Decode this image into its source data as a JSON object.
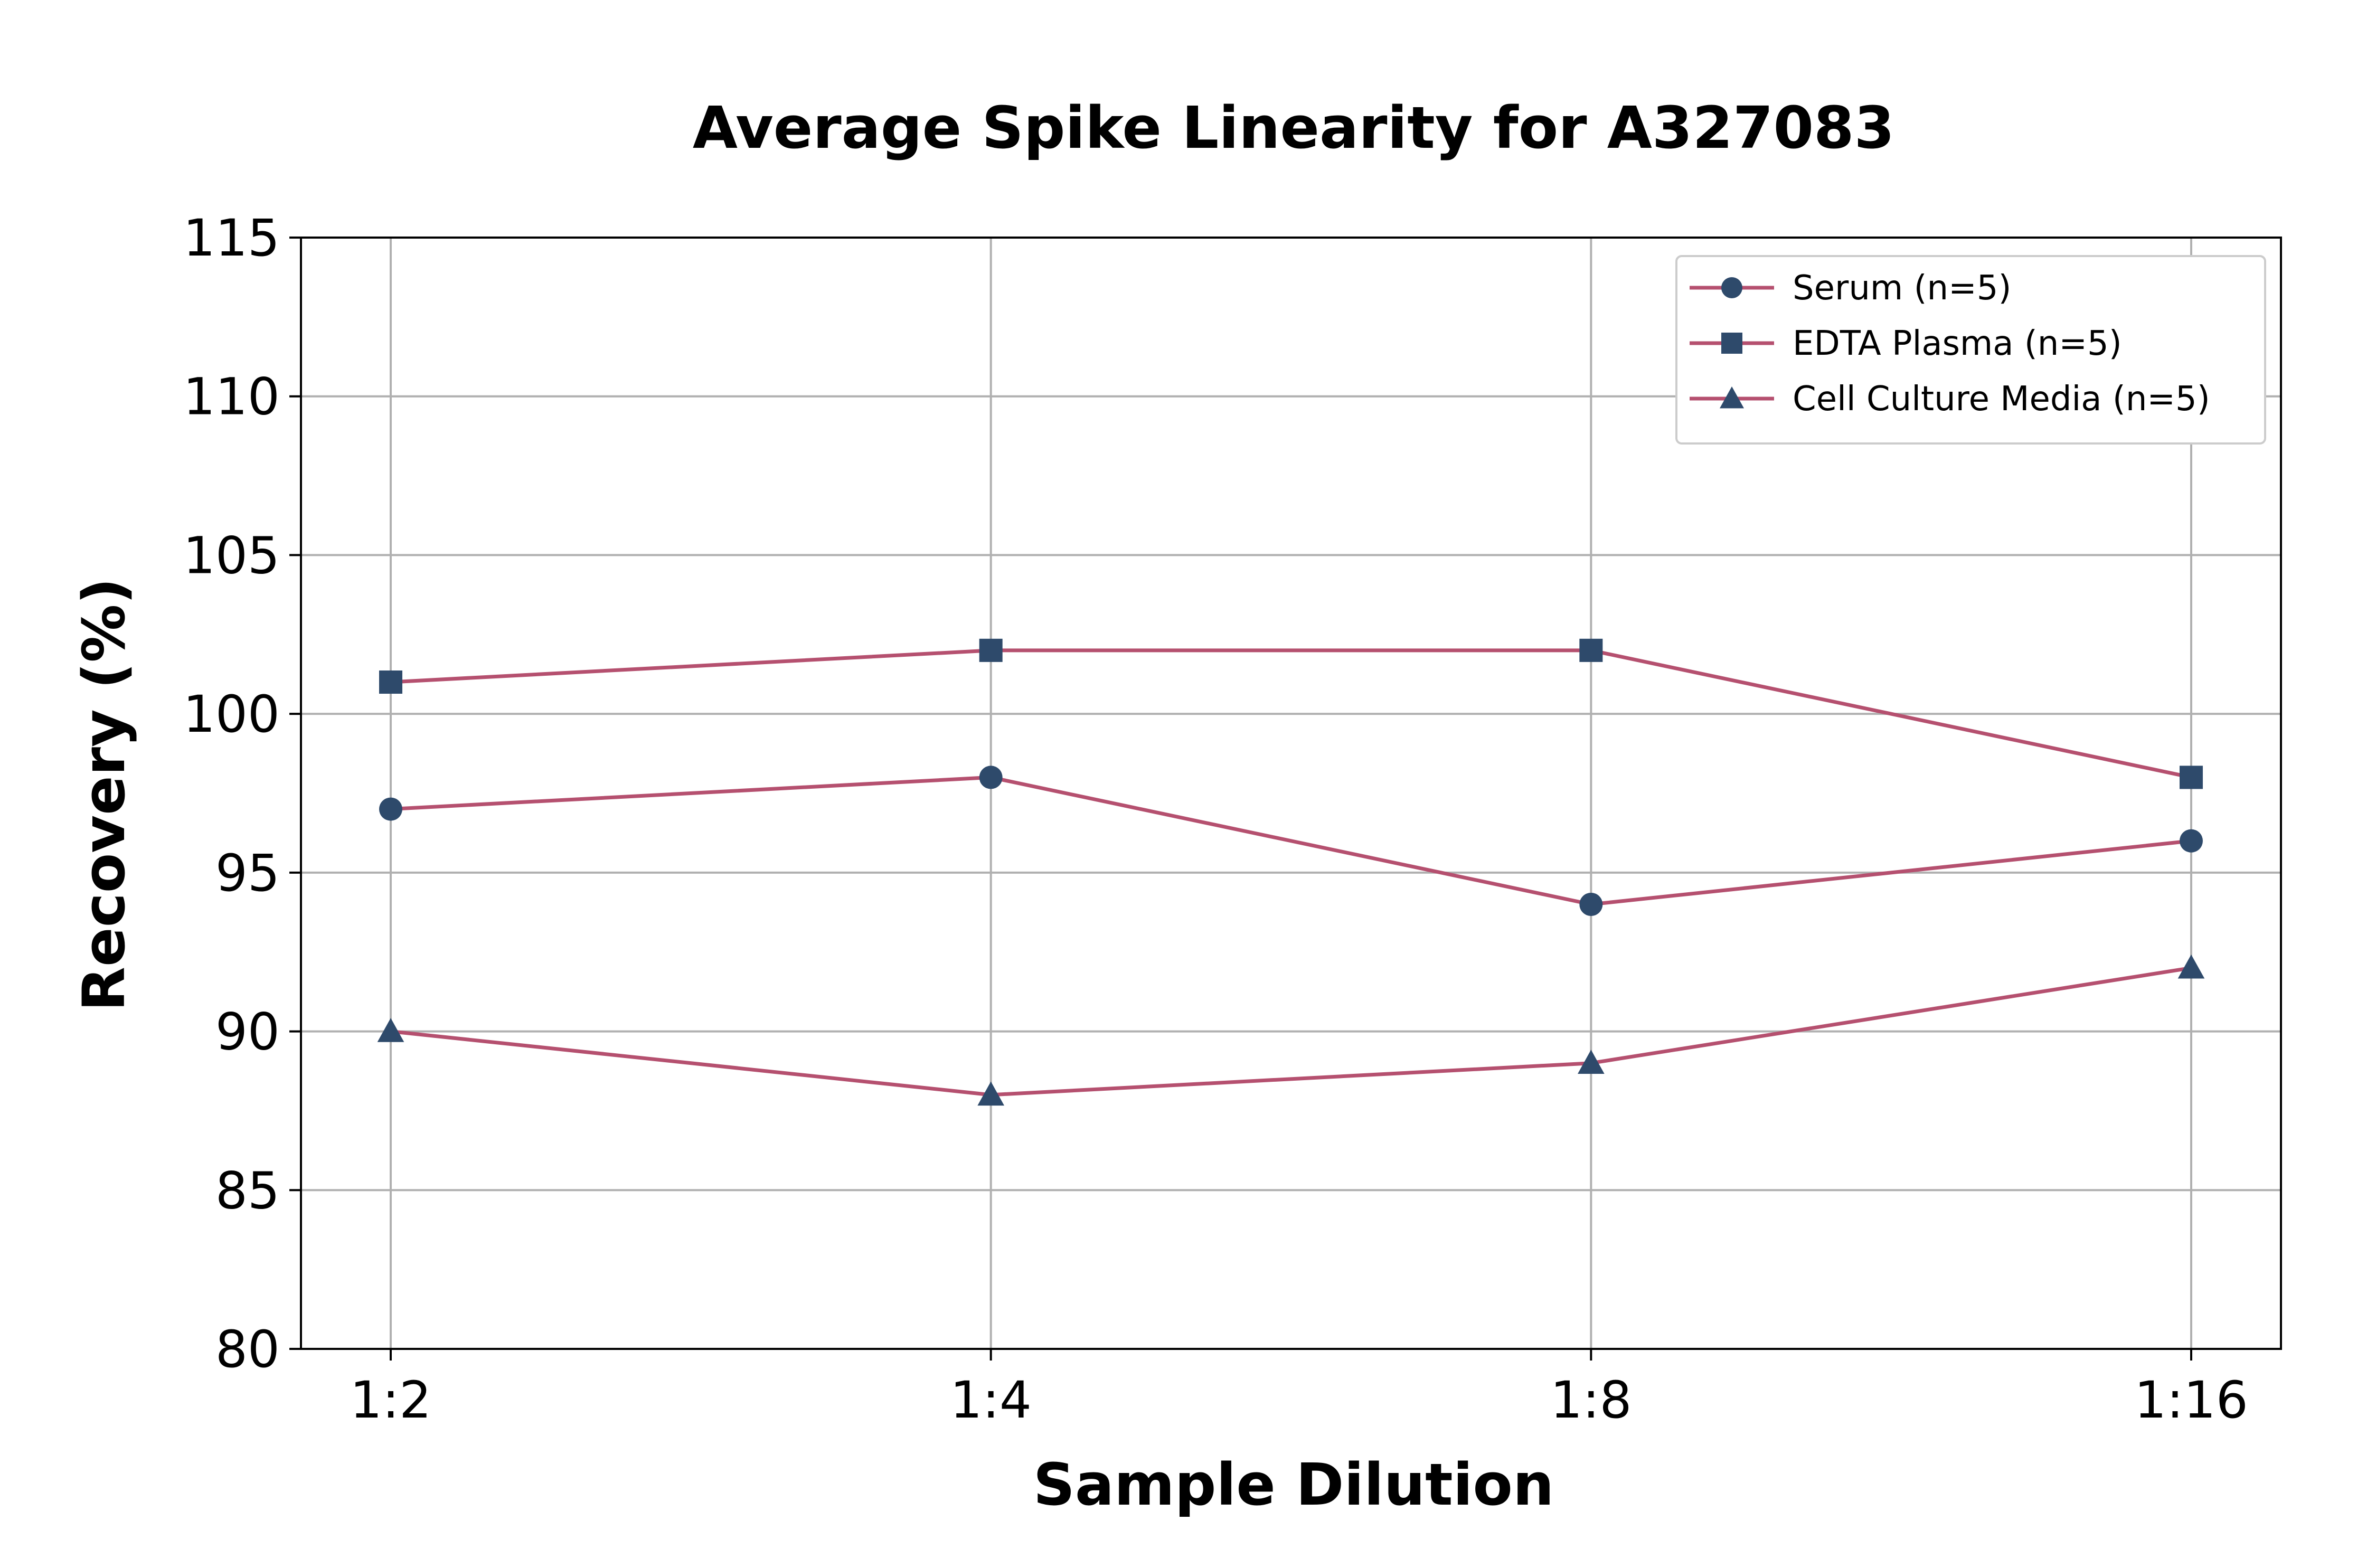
{
  "chart_data": {
    "type": "line",
    "title": "Average Spike Linearity for A327083",
    "xlabel": "Sample Dilution",
    "ylabel": "Recovery (%)",
    "categories": [
      "1:2",
      "1:4",
      "1:8",
      "1:16"
    ],
    "ylim": [
      80,
      115
    ],
    "yticks": [
      80,
      85,
      90,
      95,
      100,
      105,
      110,
      115
    ],
    "grid": true,
    "legend_position": "top-right",
    "series": [
      {
        "name": "Serum (n=5)",
        "marker": "circle",
        "values": [
          97,
          98,
          94,
          96
        ]
      },
      {
        "name": "EDTA Plasma (n=5)",
        "marker": "square",
        "values": [
          101,
          102,
          102,
          98
        ]
      },
      {
        "name": "Cell Culture Media (n=5)",
        "marker": "triangle",
        "values": [
          90,
          88,
          89,
          92
        ]
      }
    ],
    "colors": {
      "line": "#b5506f",
      "marker": "#2e4a6b",
      "grid": "#b0b0b0",
      "axis": "#000000"
    }
  }
}
